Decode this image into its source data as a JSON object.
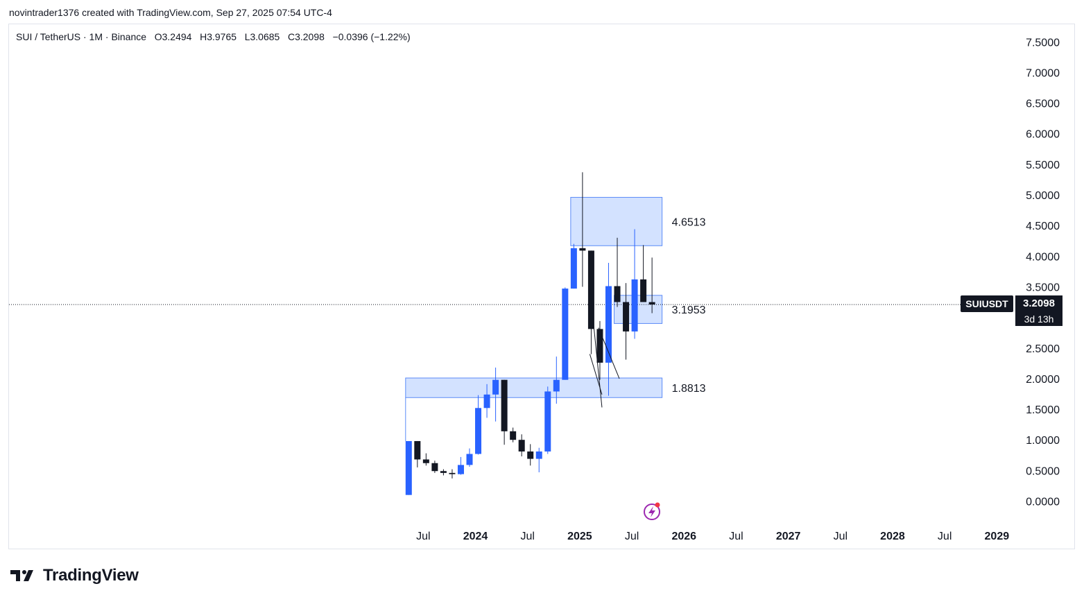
{
  "header": {
    "attribution": "novintrader1376 created with TradingView.com, Sep 27, 2025 07:54 UTC-4"
  },
  "legend": {
    "symbol": "SUI / TetherUS · 1M · Binance",
    "ohlc": "O3.2494   H3.9765   L3.0685   C3.2098   −0.0396 (−1.22%)"
  },
  "price_tag": {
    "symbol": "SUIUSDT",
    "price": "3.2098",
    "countdown": "3d 13h"
  },
  "brand": {
    "name": "TradingView"
  },
  "colors": {
    "up": "#2962ff",
    "down": "#131722",
    "zone_fill": "#d1e0ff",
    "zone_border": "#5b8bf7"
  },
  "chart_data": {
    "type": "candlestick",
    "interval": "1M",
    "ylim": [
      0,
      7.5
    ],
    "y_ticks": [
      "7.5000",
      "7.0000",
      "6.5000",
      "6.0000",
      "5.5000",
      "5.0000",
      "4.5000",
      "4.0000",
      "3.5000",
      "3.0000",
      "2.5000",
      "2.0000",
      "1.5000",
      "1.0000",
      "0.5000",
      "0.0000"
    ],
    "x_ticks": [
      {
        "month": "2023-07",
        "label": "Jul",
        "bold": false
      },
      {
        "month": "2024-01",
        "label": "2024",
        "bold": true
      },
      {
        "month": "2024-07",
        "label": "Jul",
        "bold": false
      },
      {
        "month": "2025-01",
        "label": "2025",
        "bold": true
      },
      {
        "month": "2025-07",
        "label": "Jul",
        "bold": false
      },
      {
        "month": "2026-01",
        "label": "2026",
        "bold": true
      },
      {
        "month": "2026-07",
        "label": "Jul",
        "bold": false
      },
      {
        "month": "2027-01",
        "label": "2027",
        "bold": true
      },
      {
        "month": "2027-07",
        "label": "Jul",
        "bold": false
      },
      {
        "month": "2028-01",
        "label": "2028",
        "bold": true
      },
      {
        "month": "2028-07",
        "label": "Jul",
        "bold": false
      },
      {
        "month": "2029-01",
        "label": "2029",
        "bold": true
      }
    ],
    "candles": [
      {
        "month": "2023-05",
        "o": 0.1,
        "h": 0.98,
        "l": 0.1,
        "c": 0.98
      },
      {
        "month": "2023-06",
        "o": 0.98,
        "h": 0.98,
        "l": 0.55,
        "c": 0.68
      },
      {
        "month": "2023-07",
        "o": 0.68,
        "h": 0.78,
        "l": 0.58,
        "c": 0.62
      },
      {
        "month": "2023-08",
        "o": 0.62,
        "h": 0.66,
        "l": 0.46,
        "c": 0.49
      },
      {
        "month": "2023-09",
        "o": 0.49,
        "h": 0.52,
        "l": 0.42,
        "c": 0.46
      },
      {
        "month": "2023-10",
        "o": 0.46,
        "h": 0.52,
        "l": 0.37,
        "c": 0.44
      },
      {
        "month": "2023-11",
        "o": 0.44,
        "h": 0.72,
        "l": 0.43,
        "c": 0.59
      },
      {
        "month": "2023-12",
        "o": 0.59,
        "h": 0.86,
        "l": 0.56,
        "c": 0.77
      },
      {
        "month": "2024-01",
        "o": 0.77,
        "h": 1.73,
        "l": 0.76,
        "c": 1.52
      },
      {
        "month": "2024-02",
        "o": 1.52,
        "h": 1.91,
        "l": 1.36,
        "c": 1.74
      },
      {
        "month": "2024-03",
        "o": 1.74,
        "h": 2.18,
        "l": 1.3,
        "c": 1.98
      },
      {
        "month": "2024-04",
        "o": 1.98,
        "h": 1.98,
        "l": 0.92,
        "c": 1.14
      },
      {
        "month": "2024-05",
        "o": 1.14,
        "h": 1.2,
        "l": 0.96,
        "c": 1.0
      },
      {
        "month": "2024-06",
        "o": 1.0,
        "h": 1.09,
        "l": 0.73,
        "c": 0.81
      },
      {
        "month": "2024-07",
        "o": 0.81,
        "h": 0.93,
        "l": 0.58,
        "c": 0.69
      },
      {
        "month": "2024-08",
        "o": 0.69,
        "h": 0.87,
        "l": 0.47,
        "c": 0.81
      },
      {
        "month": "2024-09",
        "o": 0.81,
        "h": 1.87,
        "l": 0.77,
        "c": 1.79
      },
      {
        "month": "2024-10",
        "o": 1.79,
        "h": 2.36,
        "l": 1.59,
        "c": 1.98
      },
      {
        "month": "2024-11",
        "o": 1.98,
        "h": 3.49,
        "l": 1.98,
        "c": 3.47
      },
      {
        "month": "2024-12",
        "o": 3.47,
        "h": 4.2,
        "l": 3.47,
        "c": 4.13
      },
      {
        "month": "2025-01",
        "o": 4.13,
        "h": 5.37,
        "l": 3.5,
        "c": 4.09
      },
      {
        "month": "2025-02",
        "o": 4.09,
        "h": 4.09,
        "l": 2.4,
        "c": 2.81
      },
      {
        "month": "2025-03",
        "o": 2.81,
        "h": 2.94,
        "l": 1.98,
        "c": 2.26
      },
      {
        "month": "2025-04",
        "o": 2.26,
        "h": 3.89,
        "l": 1.72,
        "c": 3.51
      },
      {
        "month": "2025-05",
        "o": 3.51,
        "h": 4.3,
        "l": 3.17,
        "c": 3.25
      },
      {
        "month": "2025-06",
        "o": 3.25,
        "h": 3.56,
        "l": 2.31,
        "c": 2.77
      },
      {
        "month": "2025-07",
        "o": 2.77,
        "h": 4.44,
        "l": 2.65,
        "c": 3.62
      },
      {
        "month": "2025-08",
        "o": 3.62,
        "h": 4.18,
        "l": 3.25,
        "c": 3.25
      },
      {
        "month": "2025-09",
        "o": 3.2494,
        "h": 3.9765,
        "l": 3.0685,
        "c": 3.2098
      }
    ],
    "zones": [
      {
        "label": "4.6513",
        "start": "2024-12",
        "end": "2025-09",
        "top": 4.96,
        "bottom": 4.17
      },
      {
        "label": "3.1953",
        "start": "2025-05",
        "end": "2025-09",
        "top": 3.36,
        "bottom": 2.9
      },
      {
        "label": "1.8813",
        "start": "2023-05",
        "end": "2025-09",
        "top": 2.01,
        "bottom": 1.69
      }
    ],
    "trendlines": [
      {
        "from": [
          "2025-02",
          3.5
        ],
        "to": [
          "2025-03",
          1.53
        ]
      },
      {
        "from": [
          "2025-02",
          2.4
        ],
        "to": [
          "2025-03",
          1.74
        ]
      },
      {
        "from": [
          "2025-03",
          2.83
        ],
        "to": [
          "2025-05",
          2.0
        ]
      }
    ],
    "last_price": 3.2098
  }
}
